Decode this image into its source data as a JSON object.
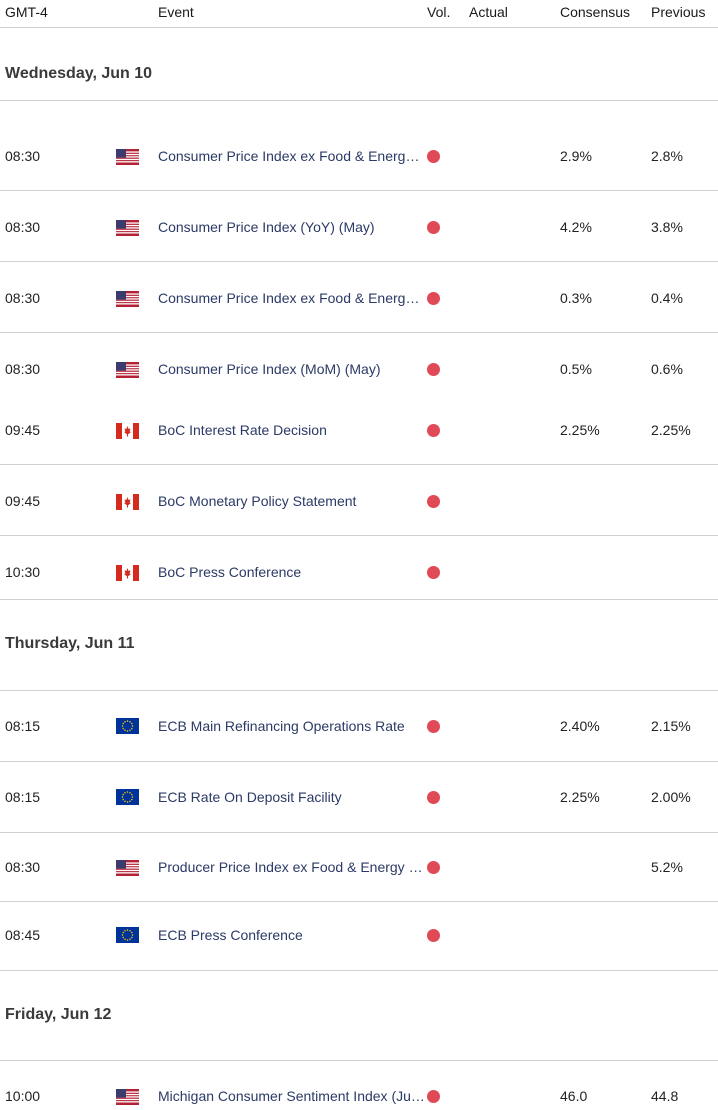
{
  "header": {
    "timezone": "GMT-4",
    "event": "Event",
    "vol": "Vol.",
    "actual": "Actual",
    "consensus": "Consensus",
    "previous": "Previous"
  },
  "days": [
    {
      "label": "Wednesday, Jun 10",
      "events": [
        {
          "time": "08:30",
          "flag": "us-flag-icon",
          "name": "Consumer Price Index ex Food & Energy (YoY) (May)",
          "consensus": "2.9%",
          "previous": "2.8%"
        },
        {
          "time": "08:30",
          "flag": "us-flag-icon",
          "name": "Consumer Price Index (YoY) (May)",
          "consensus": "4.2%",
          "previous": "3.8%"
        },
        {
          "time": "08:30",
          "flag": "us-flag-icon",
          "name": "Consumer Price Index ex Food & Energy (MoM) (May)",
          "consensus": "0.3%",
          "previous": "0.4%"
        },
        {
          "time": "08:30",
          "flag": "us-flag-icon",
          "name": "Consumer Price Index (MoM) (May)",
          "consensus": "0.5%",
          "previous": "0.6%"
        },
        {
          "time": "09:45",
          "flag": "ca-flag-icon",
          "name": "BoC Interest Rate Decision",
          "consensus": "2.25%",
          "previous": "2.25%"
        },
        {
          "time": "09:45",
          "flag": "ca-flag-icon",
          "name": "BoC Monetary Policy Statement",
          "consensus": "",
          "previous": ""
        },
        {
          "time": "10:30",
          "flag": "ca-flag-icon",
          "name": "BoC Press Conference",
          "consensus": "",
          "previous": ""
        }
      ]
    },
    {
      "label": "Thursday, Jun 11",
      "events": [
        {
          "time": "08:15",
          "flag": "eu-flag-icon",
          "name": "ECB Main Refinancing Operations Rate",
          "consensus": "2.40%",
          "previous": "2.15%"
        },
        {
          "time": "08:15",
          "flag": "eu-flag-icon",
          "name": "ECB Rate On Deposit Facility",
          "consensus": "2.25%",
          "previous": "2.00%"
        },
        {
          "time": "08:30",
          "flag": "us-flag-icon",
          "name": "Producer Price Index ex Food & Energy (YoY) (May)",
          "consensus": "",
          "previous": "5.2%"
        },
        {
          "time": "08:45",
          "flag": "eu-flag-icon",
          "name": "ECB Press Conference",
          "consensus": "",
          "previous": ""
        }
      ]
    },
    {
      "label": "Friday, Jun 12",
      "events": [
        {
          "time": "10:00",
          "flag": "us-flag-icon",
          "name": "Michigan Consumer Sentiment Index (Jun) PREL",
          "consensus": "46.0",
          "previous": "44.8"
        }
      ]
    }
  ],
  "colors": {
    "volatility_dot": "#e04a57",
    "event_text": "#2b3a66",
    "divider": "#cfcfcf"
  }
}
